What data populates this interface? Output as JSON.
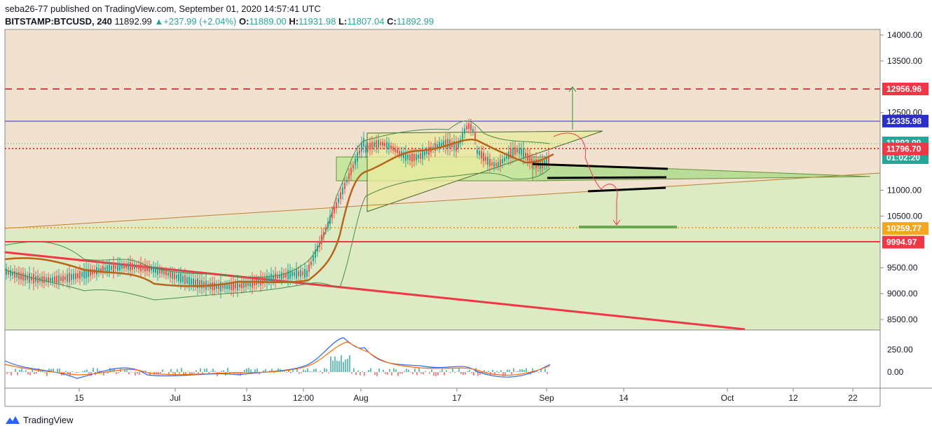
{
  "header": {
    "publisher_line": "seba26-77 published on TradingView.com, September 01, 2020 14:57:41 UTC",
    "symbol": "BITSTAMP:BTCUSD, 240",
    "last": "11892.99",
    "change": "+237.99 (+2.04%)",
    "open_label": "O:",
    "open": "11889.00",
    "high_label": "H:",
    "high": "11931.98",
    "low_label": "L:",
    "low": "11807.04",
    "close_label": "C:",
    "close": "11892.99"
  },
  "price_axis": {
    "ticks": [
      "14000.00",
      "13500.00",
      "12500.00",
      "11000.00",
      "10500.00",
      "9500.00",
      "9000.00",
      "8500.00"
    ],
    "ticks_values": [
      14000,
      13500,
      12500,
      11000,
      10500,
      9500,
      9000,
      8500
    ]
  },
  "price_labels": [
    {
      "text": "12956.96",
      "value": 12956.96,
      "color": "#f23645",
      "line": "dashed"
    },
    {
      "text": "12335.98",
      "value": 12335.98,
      "color": "#2a2ecd",
      "line": "solid"
    },
    {
      "text": "11892.99",
      "value": 11892.99,
      "color": "#26a69a",
      "line": "dotted"
    },
    {
      "text": "01:02:20",
      "value": 11760,
      "color": "#26a69a",
      "line": "none"
    },
    {
      "text": "11796.70",
      "value": 11796.7,
      "color": "#f23645",
      "line": "dotted"
    },
    {
      "text": "10259.77",
      "value": 10259.77,
      "color": "#f5a623",
      "line": "dotted"
    },
    {
      "text": "9994.97",
      "value": 9994.97,
      "color": "#f23645",
      "line": "solid"
    }
  ],
  "osc_axis": {
    "ticks": [
      "250.00",
      "0.00"
    ]
  },
  "time_axis": {
    "ticks": [
      "15",
      "Jul",
      "13",
      "12:00",
      "Aug",
      "17",
      "Sep",
      "14",
      "Oct",
      "12",
      "22"
    ]
  },
  "colors": {
    "accent_red": "#f23645",
    "accent_blue": "#2a2ecd",
    "accent_teal": "#26a69a",
    "accent_orange": "#f5a623",
    "chart_bg": "#f0e2cf",
    "zone_green": "#d9edc0"
  },
  "brand": {
    "name": "TradingView",
    "icon": "tradingview-logo-icon"
  }
}
